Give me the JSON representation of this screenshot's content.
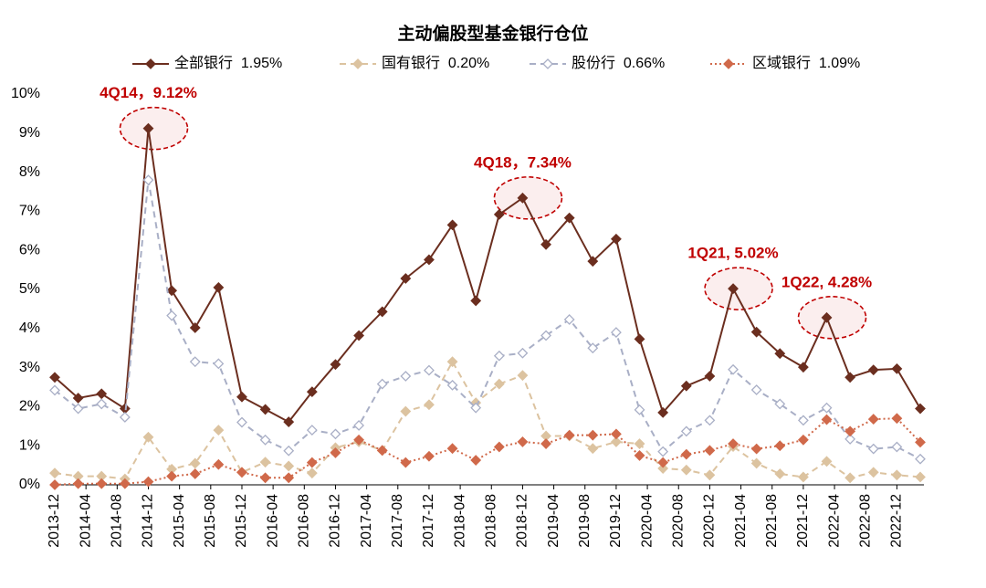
{
  "chart_data": {
    "type": "line",
    "title": "主动偏股型基金银行仓位",
    "x": [
      "2013-12",
      "2014-03",
      "2014-06",
      "2014-09",
      "2014-12",
      "2015-03",
      "2015-06",
      "2015-09",
      "2015-12",
      "2016-03",
      "2016-06",
      "2016-09",
      "2016-12",
      "2017-03",
      "2017-06",
      "2017-09",
      "2017-12",
      "2018-03",
      "2018-06",
      "2018-09",
      "2018-12",
      "2019-03",
      "2019-06",
      "2019-09",
      "2019-12",
      "2020-03",
      "2020-06",
      "2020-09",
      "2020-12",
      "2021-03",
      "2021-06",
      "2021-09",
      "2021-12",
      "2022-03",
      "2022-06",
      "2022-09",
      "2022-12",
      "2023-03"
    ],
    "xlim": [
      "2013-12",
      "2023-03"
    ],
    "xticks": [
      "2013-12",
      "2014-04",
      "2014-08",
      "2014-12",
      "2015-04",
      "2015-08",
      "2015-12",
      "2016-04",
      "2016-08",
      "2016-12",
      "2017-04",
      "2017-08",
      "2017-12",
      "2018-04",
      "2018-08",
      "2018-12",
      "2019-04",
      "2019-08",
      "2019-12",
      "2020-04",
      "2020-08",
      "2020-12",
      "2021-04",
      "2021-08",
      "2021-12",
      "2022-04",
      "2022-08",
      "2022-12"
    ],
    "ylim": [
      0,
      10
    ],
    "yticks": [
      {
        "value": 0,
        "label": "0%"
      },
      {
        "value": 1,
        "label": "1%"
      },
      {
        "value": 2,
        "label": "2%"
      },
      {
        "value": 3,
        "label": "3%"
      },
      {
        "value": 4,
        "label": "4%"
      },
      {
        "value": 5,
        "label": "5%"
      },
      {
        "value": 6,
        "label": "6%"
      },
      {
        "value": 7,
        "label": "7%"
      },
      {
        "value": 8,
        "label": "8%"
      },
      {
        "value": 9,
        "label": "9%"
      },
      {
        "value": 10,
        "label": "10%"
      }
    ],
    "grid": false,
    "legend": "top",
    "series": [
      {
        "name": "全部银行  1.95%",
        "color": "#6b2e1f",
        "dash": "solid",
        "marker": "filled",
        "values": [
          2.75,
          2.22,
          2.33,
          1.95,
          9.12,
          4.97,
          4.02,
          5.05,
          2.25,
          1.93,
          1.61,
          2.38,
          3.08,
          3.82,
          4.43,
          5.28,
          5.76,
          6.65,
          4.71,
          6.92,
          7.34,
          6.15,
          6.83,
          5.72,
          6.29,
          3.73,
          1.85,
          2.53,
          2.78,
          5.02,
          3.91,
          3.36,
          3.01,
          4.28,
          2.75,
          2.94,
          2.97,
          1.95
        ]
      },
      {
        "name": "国有银行  0.20%",
        "color": "#dcc3a0",
        "dash": "dash",
        "marker": "filled",
        "values": [
          0.3,
          0.22,
          0.22,
          0.15,
          1.22,
          0.4,
          0.55,
          1.4,
          0.32,
          0.58,
          0.48,
          0.3,
          0.95,
          1.1,
          0.88,
          1.88,
          2.05,
          3.15,
          2.1,
          2.58,
          2.8,
          1.25,
          1.25,
          0.93,
          1.1,
          1.05,
          0.42,
          0.38,
          0.25,
          0.98,
          0.55,
          0.28,
          0.2,
          0.6,
          0.18,
          0.32,
          0.25,
          0.2
        ]
      },
      {
        "name": "股份行  0.66%",
        "color": "#a9afc6",
        "dash": "dash",
        "marker": "hollow",
        "values": [
          2.42,
          1.95,
          2.07,
          1.73,
          7.8,
          4.33,
          3.15,
          3.1,
          1.6,
          1.15,
          0.87,
          1.4,
          1.3,
          1.52,
          2.58,
          2.78,
          2.93,
          2.55,
          1.97,
          3.3,
          3.37,
          3.82,
          4.23,
          3.5,
          3.9,
          1.92,
          0.85,
          1.37,
          1.65,
          2.95,
          2.43,
          2.07,
          1.65,
          1.97,
          1.17,
          0.92,
          0.97,
          0.66
        ]
      },
      {
        "name": "区域银行  1.09%",
        "color": "#d0694a",
        "dash": "dot",
        "marker": "filled",
        "values": [
          0.0,
          0.03,
          0.03,
          0.03,
          0.08,
          0.22,
          0.28,
          0.52,
          0.32,
          0.18,
          0.18,
          0.57,
          0.82,
          1.15,
          0.88,
          0.57,
          0.73,
          0.93,
          0.63,
          0.97,
          1.1,
          1.05,
          1.27,
          1.27,
          1.3,
          0.75,
          0.57,
          0.78,
          0.88,
          1.05,
          0.92,
          1.0,
          1.15,
          1.67,
          1.37,
          1.68,
          1.7,
          1.09
        ]
      }
    ],
    "annotations": [
      {
        "text": "4Q14，9.12%",
        "x": "2014-12",
        "y": 9.12
      },
      {
        "text": "4Q18，7.34%",
        "x": "2018-12",
        "y": 7.34
      },
      {
        "text": "1Q21, 5.02%",
        "x": "2021-03",
        "y": 5.02
      },
      {
        "text": "1Q22, 4.28%",
        "x": "2022-03",
        "y": 4.28
      }
    ]
  }
}
